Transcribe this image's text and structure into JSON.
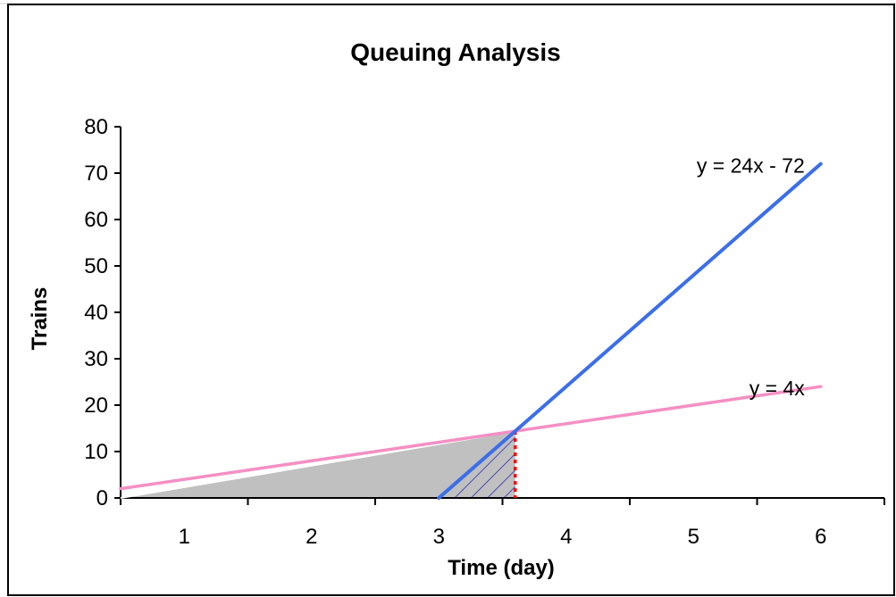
{
  "chart_data": {
    "type": "line",
    "title": "Queuing Analysis",
    "xlabel": "Time (day)",
    "ylabel": "Trains",
    "xlim": [
      0.5,
      6.5
    ],
    "ylim": [
      0,
      80
    ],
    "x_ticks": [
      1,
      2,
      3,
      4,
      5,
      6
    ],
    "y_ticks": [
      0,
      10,
      20,
      30,
      40,
      50,
      60,
      70,
      80
    ],
    "grid": false,
    "legend": "none",
    "series": [
      {
        "name": "y = 4x",
        "x": [
          0.5,
          3.6,
          6.0
        ],
        "y": [
          2,
          14.4,
          24
        ],
        "color": "#f48fc4"
      },
      {
        "name": "y = 24x - 72",
        "x": [
          3.0,
          3.6,
          6.0
        ],
        "y": [
          0,
          14.4,
          72
        ],
        "color": "#3b6ee8"
      }
    ],
    "intersection": {
      "x": 3.6,
      "y": 14.4,
      "marker_color": "#ff0000"
    },
    "shaded_region": {
      "x_from": 0.5,
      "x_to": 3.6,
      "fill": "#c0c0c0"
    },
    "hatched_region": {
      "x_from": 3.0,
      "x_to": 3.6,
      "stroke": "#2a2ab0"
    }
  }
}
